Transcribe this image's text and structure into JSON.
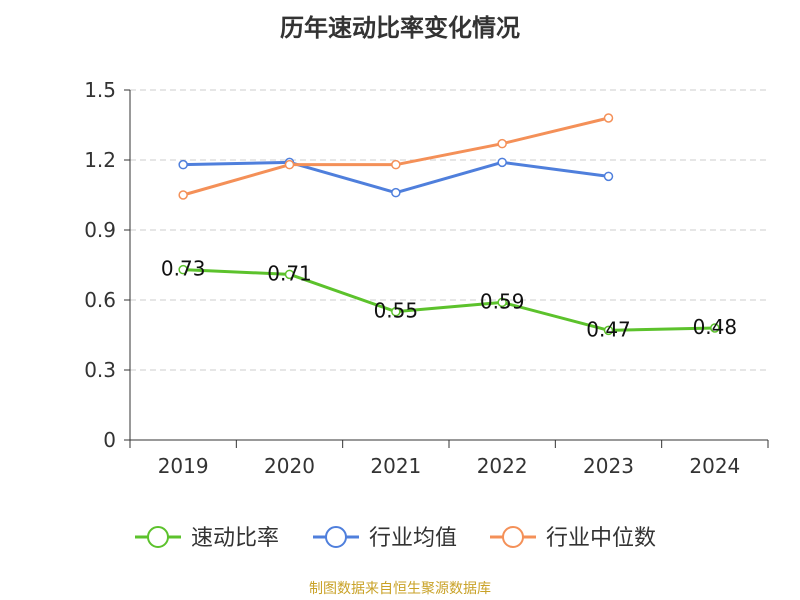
{
  "title": "历年速动比率变化情况",
  "source": "制图数据来自恒生聚源数据库",
  "colors": {
    "speed_ratio": "#5cc22c",
    "industry_avg": "#4f7fdc",
    "industry_median": "#f49058",
    "grid": "#cccccc",
    "axis": "#333333",
    "source_text": "#c9a227"
  },
  "chart_data": {
    "type": "line",
    "title": "历年速动比率变化情况",
    "xlabel": "",
    "ylabel": "",
    "categories": [
      "2019",
      "2020",
      "2021",
      "2022",
      "2023",
      "2024"
    ],
    "ylim": [
      0,
      1.5
    ],
    "yticks": [
      "0",
      "0.3",
      "0.6",
      "0.9",
      "1.2",
      "1.5"
    ],
    "grid": true,
    "legend_position": "bottom",
    "series": [
      {
        "name": "速动比率",
        "color": "#5cc22c",
        "values": [
          0.73,
          0.71,
          0.55,
          0.59,
          0.47,
          0.48
        ],
        "labels": [
          "0.73",
          "0.71",
          "0.55",
          "0.59",
          "0.47",
          "0.48"
        ]
      },
      {
        "name": "行业均值",
        "color": "#4f7fdc",
        "values": [
          1.18,
          1.19,
          1.06,
          1.19,
          1.13,
          null
        ]
      },
      {
        "name": "行业中位数",
        "color": "#f49058",
        "values": [
          1.05,
          1.18,
          1.18,
          1.27,
          1.38,
          null
        ]
      }
    ]
  }
}
